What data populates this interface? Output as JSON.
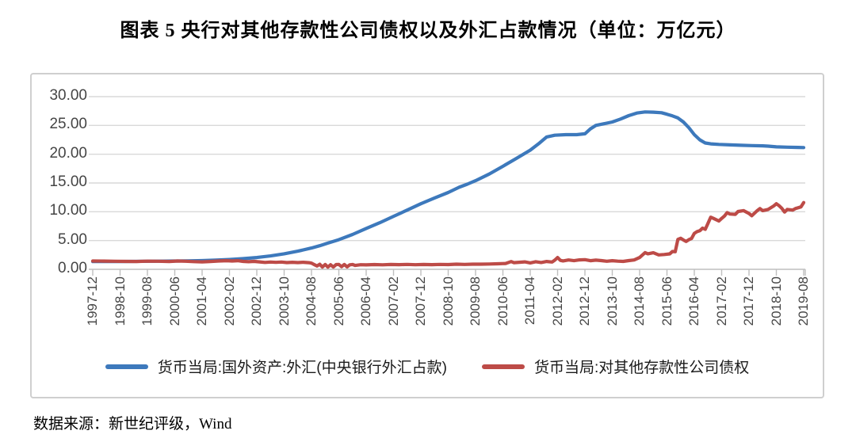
{
  "title": "图表 5  央行对其他存款性公司债权以及外汇占款情况（单位：万亿元）",
  "source": "数据来源：新世纪评级，Wind",
  "colors": {
    "blue": "#3D79BC",
    "red": "#BD4B47",
    "grid": "#D9D9D9",
    "axis": "#BFBFBF",
    "tick_label": "#454545",
    "frame_border": "#CFCFCF"
  },
  "chart_data": {
    "type": "line",
    "title": "图表 5  央行对其他存款性公司债权以及外汇占款情况（单位：万亿元）",
    "xlabel": "",
    "ylabel": "",
    "unit": "万亿元",
    "grid": true,
    "legend_position": "bottom",
    "ylim": [
      0,
      30
    ],
    "y_tick_values": [
      30,
      25,
      20,
      15,
      10,
      5,
      0
    ],
    "y_tick_labels": [
      "30.00",
      "25.00",
      "20.00",
      "15.00",
      "10.00",
      "5.00",
      "0.00"
    ],
    "x_unit": "months since 1997-12",
    "xlim_months": [
      0,
      260
    ],
    "x_tick_interval_months": 10,
    "x_tick_labels": [
      "1997-12",
      "1998-10",
      "1999-08",
      "2000-06",
      "2001-04",
      "2002-02",
      "2002-12",
      "2003-10",
      "2004-08",
      "2005-06",
      "2006-04",
      "2007-02",
      "2007-12",
      "2008-10",
      "2009-08",
      "2010-06",
      "2011-04",
      "2012-02",
      "2012-12",
      "2013-10",
      "2014-08",
      "2015-06",
      "2016-04",
      "2017-02",
      "2017-12",
      "2018-10",
      "2019-08"
    ],
    "series": [
      {
        "name": "货币当局:国外资产:外汇(中央银行外汇占款)",
        "color_key": "blue",
        "points": [
          [
            0,
            1.35
          ],
          [
            5,
            1.36
          ],
          [
            10,
            1.36
          ],
          [
            15,
            1.38
          ],
          [
            20,
            1.4
          ],
          [
            25,
            1.42
          ],
          [
            30,
            1.44
          ],
          [
            35,
            1.47
          ],
          [
            40,
            1.52
          ],
          [
            45,
            1.6
          ],
          [
            50,
            1.71
          ],
          [
            55,
            1.86
          ],
          [
            60,
            2.05
          ],
          [
            65,
            2.32
          ],
          [
            70,
            2.7
          ],
          [
            75,
            3.15
          ],
          [
            80,
            3.7
          ],
          [
            83,
            4.1
          ],
          [
            86,
            4.55
          ],
          [
            90,
            5.15
          ],
          [
            95,
            6.05
          ],
          [
            100,
            7.1
          ],
          [
            105,
            8.1
          ],
          [
            110,
            9.2
          ],
          [
            115,
            10.3
          ],
          [
            120,
            11.4
          ],
          [
            125,
            12.4
          ],
          [
            130,
            13.35
          ],
          [
            134,
            14.25
          ],
          [
            137,
            14.8
          ],
          [
            140,
            15.4
          ],
          [
            145,
            16.55
          ],
          [
            150,
            17.9
          ],
          [
            155,
            19.3
          ],
          [
            160,
            20.7
          ],
          [
            163,
            21.8
          ],
          [
            166,
            23.0
          ],
          [
            169,
            23.3
          ],
          [
            173,
            23.4
          ],
          [
            177,
            23.4
          ],
          [
            180,
            23.55
          ],
          [
            182,
            24.4
          ],
          [
            184,
            25.0
          ],
          [
            187,
            25.3
          ],
          [
            190,
            25.6
          ],
          [
            193,
            26.1
          ],
          [
            196,
            26.7
          ],
          [
            199,
            27.15
          ],
          [
            202,
            27.35
          ],
          [
            205,
            27.3
          ],
          [
            208,
            27.2
          ],
          [
            210,
            26.95
          ],
          [
            212,
            26.65
          ],
          [
            214,
            26.3
          ],
          [
            216,
            25.6
          ],
          [
            218,
            24.6
          ],
          [
            220,
            23.4
          ],
          [
            222,
            22.5
          ],
          [
            224,
            21.95
          ],
          [
            226,
            21.8
          ],
          [
            229,
            21.7
          ],
          [
            233,
            21.62
          ],
          [
            237,
            21.55
          ],
          [
            241,
            21.5
          ],
          [
            245,
            21.45
          ],
          [
            247,
            21.4
          ],
          [
            250,
            21.28
          ],
          [
            254,
            21.22
          ],
          [
            258,
            21.18
          ],
          [
            260,
            21.15
          ]
        ]
      },
      {
        "name": "货币当局:对其他存款性公司债权",
        "color_key": "red",
        "points": [
          [
            0,
            1.44
          ],
          [
            4,
            1.43
          ],
          [
            8,
            1.41
          ],
          [
            12,
            1.38
          ],
          [
            16,
            1.36
          ],
          [
            20,
            1.42
          ],
          [
            24,
            1.4
          ],
          [
            28,
            1.36
          ],
          [
            31,
            1.44
          ],
          [
            34,
            1.4
          ],
          [
            37,
            1.33
          ],
          [
            40,
            1.29
          ],
          [
            43,
            1.36
          ],
          [
            46,
            1.44
          ],
          [
            49,
            1.5
          ],
          [
            51,
            1.44
          ],
          [
            53,
            1.5
          ],
          [
            55,
            1.38
          ],
          [
            57,
            1.32
          ],
          [
            59,
            1.38
          ],
          [
            61,
            1.3
          ],
          [
            63,
            1.2
          ],
          [
            65,
            1.27
          ],
          [
            67,
            1.21
          ],
          [
            69,
            1.27
          ],
          [
            71,
            1.17
          ],
          [
            73,
            1.23
          ],
          [
            75,
            1.17
          ],
          [
            77,
            1.22
          ],
          [
            79,
            1.15
          ],
          [
            80,
            1.08
          ],
          [
            81,
            0.82
          ],
          [
            82,
            0.58
          ],
          [
            83,
            0.88
          ],
          [
            84,
            0.4
          ],
          [
            85,
            0.84
          ],
          [
            86,
            0.38
          ],
          [
            87,
            0.8
          ],
          [
            88,
            0.4
          ],
          [
            89,
            0.82
          ],
          [
            90,
            0.86
          ],
          [
            91,
            0.45
          ],
          [
            92,
            0.84
          ],
          [
            93,
            0.42
          ],
          [
            94,
            0.78
          ],
          [
            95,
            0.84
          ],
          [
            96,
            0.68
          ],
          [
            98,
            0.8
          ],
          [
            100,
            0.77
          ],
          [
            103,
            0.82
          ],
          [
            106,
            0.79
          ],
          [
            109,
            0.84
          ],
          [
            112,
            0.81
          ],
          [
            115,
            0.86
          ],
          [
            118,
            0.8
          ],
          [
            121,
            0.84
          ],
          [
            124,
            0.81
          ],
          [
            127,
            0.86
          ],
          [
            130,
            0.83
          ],
          [
            133,
            0.9
          ],
          [
            136,
            0.86
          ],
          [
            139,
            0.89
          ],
          [
            142,
            0.9
          ],
          [
            145,
            0.92
          ],
          [
            148,
            0.96
          ],
          [
            151,
            1.02
          ],
          [
            153,
            1.35
          ],
          [
            154,
            1.15
          ],
          [
            156,
            1.22
          ],
          [
            158,
            1.3
          ],
          [
            160,
            1.12
          ],
          [
            162,
            1.32
          ],
          [
            164,
            1.18
          ],
          [
            166,
            1.36
          ],
          [
            168,
            1.26
          ],
          [
            169,
            1.6
          ],
          [
            170,
            2.05
          ],
          [
            171,
            1.55
          ],
          [
            172,
            1.46
          ],
          [
            174,
            1.62
          ],
          [
            176,
            1.5
          ],
          [
            178,
            1.64
          ],
          [
            180,
            1.68
          ],
          [
            182,
            1.5
          ],
          [
            184,
            1.6
          ],
          [
            186,
            1.52
          ],
          [
            188,
            1.4
          ],
          [
            190,
            1.5
          ],
          [
            192,
            1.42
          ],
          [
            194,
            1.38
          ],
          [
            196,
            1.52
          ],
          [
            198,
            1.62
          ],
          [
            200,
            2.05
          ],
          [
            202,
            2.9
          ],
          [
            203,
            2.7
          ],
          [
            205,
            2.88
          ],
          [
            207,
            2.5
          ],
          [
            209,
            2.58
          ],
          [
            211,
            2.68
          ],
          [
            212,
            3.1
          ],
          [
            213,
            3.05
          ],
          [
            214,
            5.2
          ],
          [
            215,
            5.4
          ],
          [
            216,
            5.1
          ],
          [
            217,
            4.85
          ],
          [
            218,
            5.15
          ],
          [
            219,
            5.35
          ],
          [
            220,
            6.25
          ],
          [
            221,
            6.55
          ],
          [
            222,
            6.7
          ],
          [
            223,
            7.15
          ],
          [
            224,
            6.95
          ],
          [
            225,
            8.0
          ],
          [
            226,
            9.05
          ],
          [
            227,
            8.85
          ],
          [
            229,
            8.4
          ],
          [
            230,
            8.85
          ],
          [
            231,
            9.25
          ],
          [
            232,
            9.85
          ],
          [
            233,
            9.6
          ],
          [
            235,
            9.55
          ],
          [
            236,
            10.05
          ],
          [
            238,
            10.2
          ],
          [
            240,
            9.7
          ],
          [
            241,
            9.3
          ],
          [
            243,
            10.2
          ],
          [
            244,
            10.55
          ],
          [
            245,
            10.2
          ],
          [
            247,
            10.4
          ],
          [
            249,
            11.0
          ],
          [
            250,
            11.4
          ],
          [
            251,
            11.05
          ],
          [
            252,
            10.6
          ],
          [
            253,
            9.95
          ],
          [
            254,
            10.4
          ],
          [
            256,
            10.3
          ],
          [
            257,
            10.55
          ],
          [
            258,
            10.7
          ],
          [
            259,
            10.85
          ],
          [
            260,
            11.6
          ]
        ]
      }
    ]
  }
}
